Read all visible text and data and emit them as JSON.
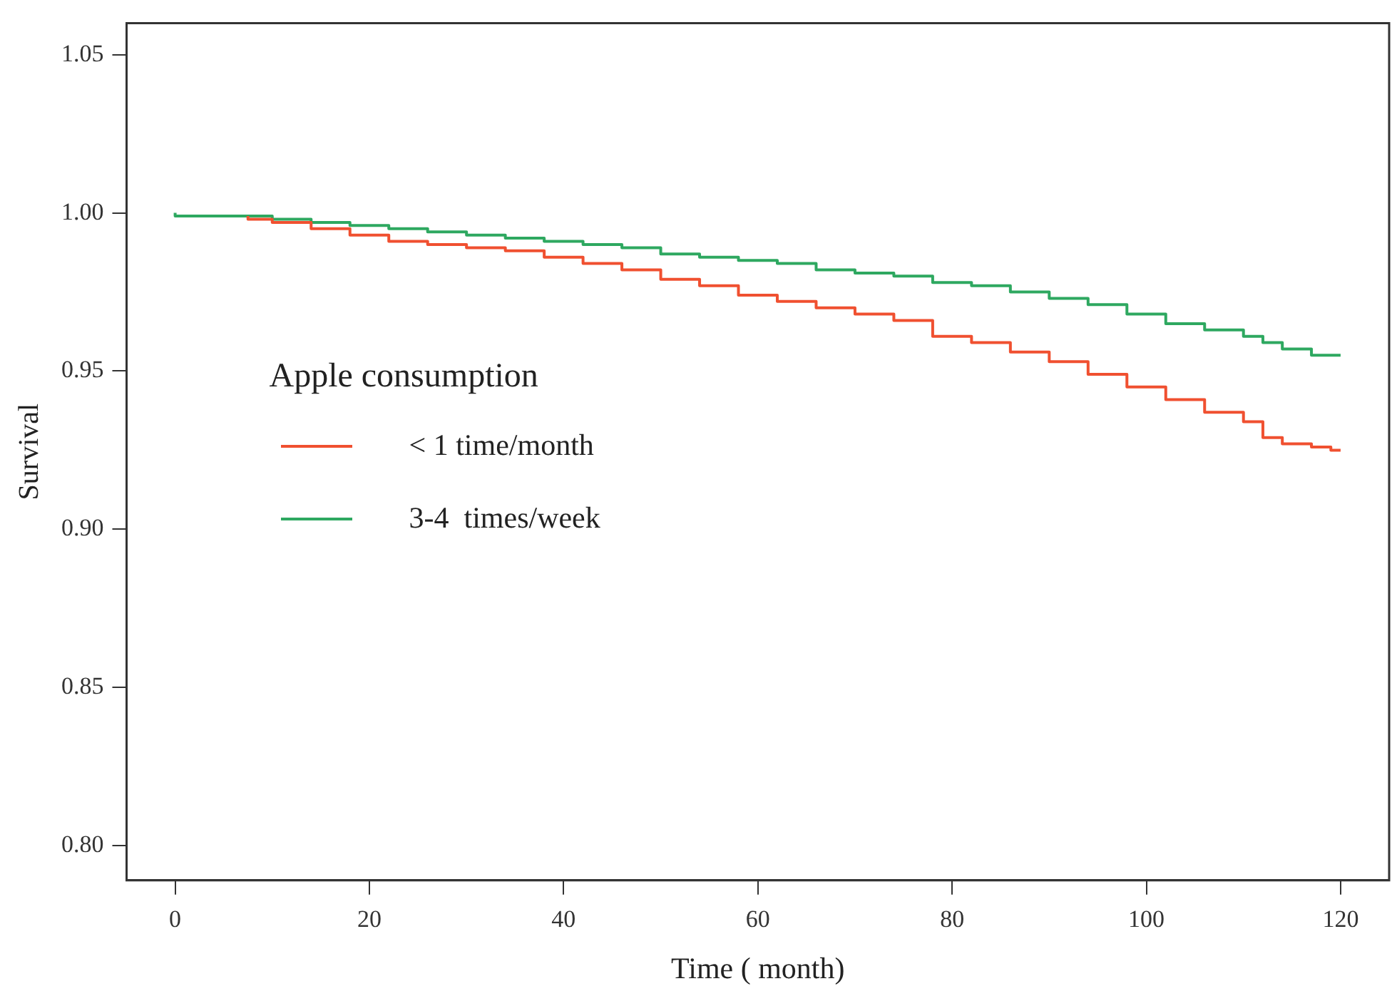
{
  "chart_data": {
    "type": "step",
    "xlabel": "Time ( month)",
    "ylabel": "Survival",
    "legend_title": "Apple consumption",
    "xlim": [
      -5,
      125
    ],
    "xticks": [
      0,
      20,
      40,
      60,
      80,
      100,
      120
    ],
    "ylim": [
      0.789,
      1.06
    ],
    "yticks": [
      {
        "value": 0.8,
        "label": "0.80"
      },
      {
        "value": 0.85,
        "label": "0.85"
      },
      {
        "value": 0.9,
        "label": "0.90"
      },
      {
        "value": 0.95,
        "label": "0.95"
      },
      {
        "value": 1.0,
        "label": "1.00"
      },
      {
        "value": 1.05,
        "label": "1.05"
      }
    ],
    "grid": false,
    "legend": "center left",
    "marker": "none",
    "line_style": "solid",
    "series": [
      {
        "name": "< 1 time/month",
        "color": "#f05030",
        "x": [
          7.5,
          10,
          14,
          18,
          22,
          26,
          30,
          34,
          38,
          42,
          46,
          50,
          54,
          58,
          62,
          66,
          70,
          74,
          78,
          82,
          86,
          90,
          94,
          98,
          102,
          106,
          110,
          112,
          114,
          117,
          119,
          120
        ],
        "values": [
          0.999,
          0.998,
          0.997,
          0.995,
          0.993,
          0.991,
          0.99,
          0.989,
          0.988,
          0.986,
          0.984,
          0.982,
          0.979,
          0.977,
          0.974,
          0.972,
          0.97,
          0.968,
          0.966,
          0.961,
          0.959,
          0.956,
          0.953,
          0.949,
          0.945,
          0.941,
          0.937,
          0.934,
          0.929,
          0.927,
          0.926,
          0.925
        ]
      },
      {
        "name": "3-4  times/week",
        "color": "#2ea860",
        "x": [
          0,
          10,
          14,
          18,
          22,
          26,
          30,
          34,
          38,
          42,
          46,
          50,
          54,
          58,
          62,
          66,
          70,
          74,
          78,
          82,
          86,
          90,
          94,
          98,
          102,
          106,
          110,
          112,
          114,
          117,
          120
        ],
        "values": [
          1.0,
          0.999,
          0.998,
          0.997,
          0.996,
          0.995,
          0.994,
          0.993,
          0.992,
          0.991,
          0.99,
          0.989,
          0.987,
          0.986,
          0.985,
          0.984,
          0.982,
          0.981,
          0.98,
          0.978,
          0.977,
          0.975,
          0.973,
          0.971,
          0.968,
          0.965,
          0.963,
          0.961,
          0.959,
          0.957,
          0.955
        ]
      }
    ]
  }
}
